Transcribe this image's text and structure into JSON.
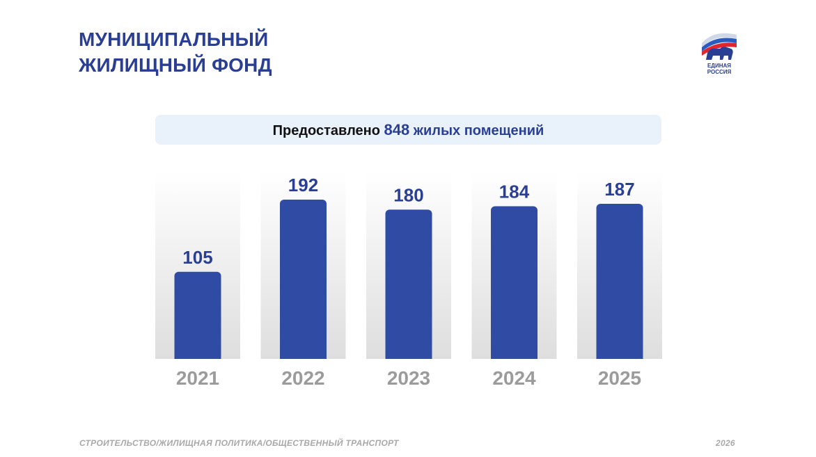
{
  "header": {
    "title_line1": "МУНИЦИПАЛЬНЫЙ",
    "title_line2": "ЖИЛИЩНЫЙ ФОНД"
  },
  "logo": {
    "icon": "bear-flag-logo-icon",
    "line1": "ЕДИНАЯ",
    "line2": "РОССИЯ"
  },
  "banner": {
    "prefix": "Предоставлено",
    "number": "848",
    "suffix": "жилых помещений"
  },
  "chart_data": {
    "type": "bar",
    "categories": [
      "2021",
      "2022",
      "2023",
      "2024",
      "2025"
    ],
    "values": [
      105,
      192,
      180,
      184,
      187
    ],
    "data_labels": [
      "105",
      "192",
      "180",
      "184",
      "187"
    ],
    "ylim": [
      0,
      200
    ],
    "grid": false,
    "legend": "none",
    "colors": {
      "bar": "#2f4ba3",
      "label": "#2a3f94",
      "tick": "#9b9b9b"
    }
  },
  "footer": {
    "section": "СТРОИТЕЛЬСТВО/ЖИЛИЩНАЯ ПОЛИТИКА/ОБЩЕСТВЕННЫЙ ТРАНСПОРТ",
    "year": "2026"
  }
}
